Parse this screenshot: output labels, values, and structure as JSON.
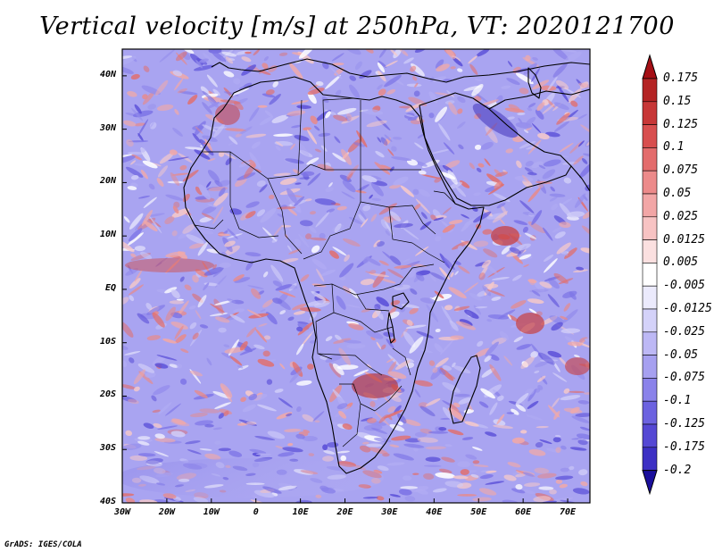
{
  "title": "Vertical velocity [m/s] at 250hPa, VT: 2020121700",
  "footer": "GrADS: IGES/COLA",
  "map": {
    "region": "Africa",
    "lon_range": [
      -30,
      75
    ],
    "lat_range": [
      -40,
      45
    ],
    "lat_ticks": [
      {
        "lat": 40,
        "label": "40N"
      },
      {
        "lat": 30,
        "label": "30N"
      },
      {
        "lat": 20,
        "label": "20N"
      },
      {
        "lat": 10,
        "label": "10N"
      },
      {
        "lat": 0,
        "label": "EQ"
      },
      {
        "lat": -10,
        "label": "10S"
      },
      {
        "lat": -20,
        "label": "20S"
      },
      {
        "lat": -30,
        "label": "30S"
      },
      {
        "lat": -40,
        "label": "40S"
      }
    ],
    "lon_ticks": [
      {
        "lon": -30,
        "label": "30W"
      },
      {
        "lon": -20,
        "label": "20W"
      },
      {
        "lon": -10,
        "label": "10W"
      },
      {
        "lon": 0,
        "label": "0"
      },
      {
        "lon": 10,
        "label": "10E"
      },
      {
        "lon": 20,
        "label": "20E"
      },
      {
        "lon": 30,
        "label": "30E"
      },
      {
        "lon": 40,
        "label": "40E"
      },
      {
        "lon": 50,
        "label": "50E"
      },
      {
        "lon": 60,
        "label": "60E"
      },
      {
        "lon": 70,
        "label": "70E"
      }
    ]
  },
  "colorbar": {
    "units": "m/s",
    "max_arrow_color": "#a50f15",
    "min_arrow_color": "#1a0f9c",
    "colors": [
      "#2a1ab0",
      "#3d30c4",
      "#5548d4",
      "#6c62e0",
      "#8a82ea",
      "#a6a0f0",
      "#bdb8f5",
      "#d4d2f9",
      "#ebeafc",
      "#ffffff",
      "#fbe0e0",
      "#f7c3c3",
      "#f2a6a6",
      "#ec8a8a",
      "#e36c6c",
      "#d84f4f",
      "#c73737",
      "#b42424"
    ],
    "labels": [
      "0.175",
      "0.15",
      "0.125",
      "0.1",
      "0.075",
      "0.05",
      "0.025",
      "0.0125",
      "0.005",
      "-0.005",
      "-0.0125",
      "-0.025",
      "-0.05",
      "-0.075",
      "-0.1",
      "-0.125",
      "-0.175",
      "-0.2"
    ]
  }
}
